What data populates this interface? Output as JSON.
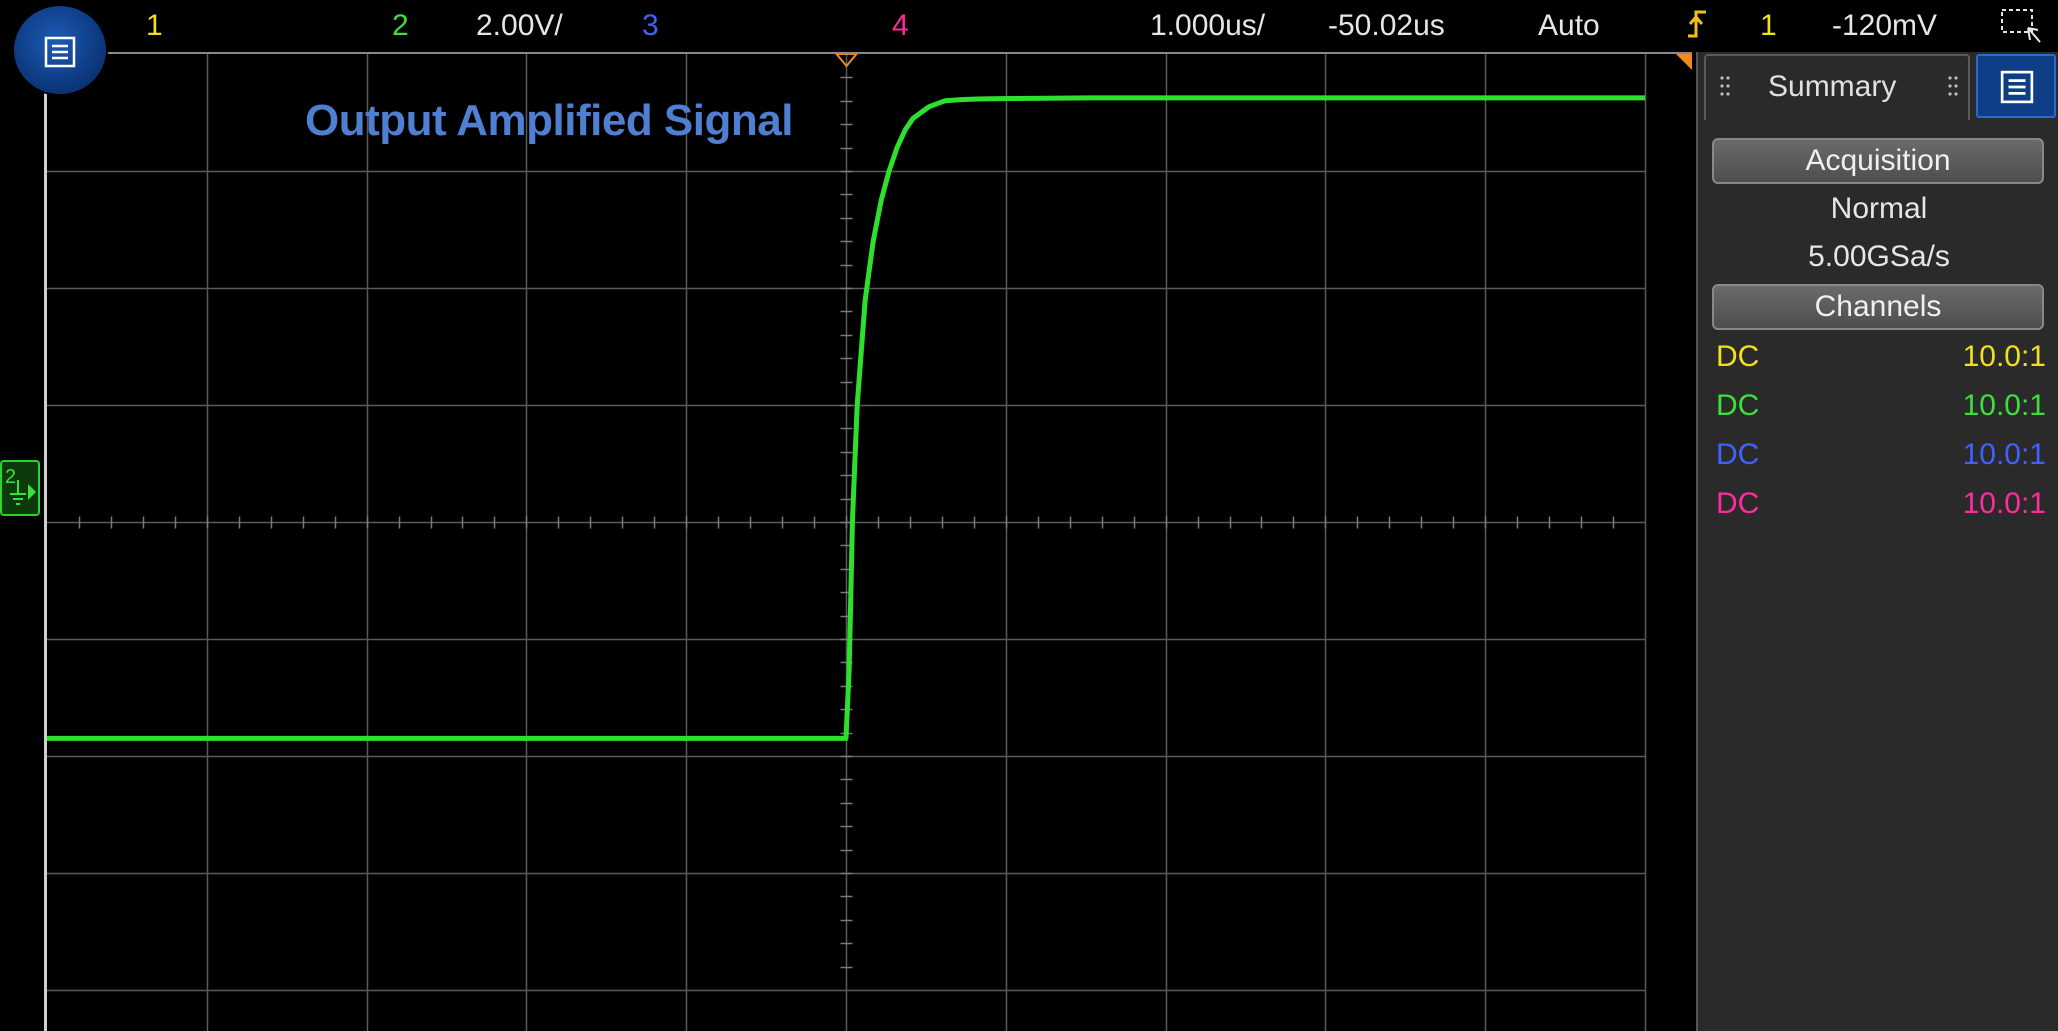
{
  "topbar": {
    "ch1": {
      "label": "1",
      "color": "#f0e020"
    },
    "ch2": {
      "label": "2",
      "scale": "2.00V/",
      "color": "#3be03b"
    },
    "ch3": {
      "label": "3",
      "color": "#4060ff"
    },
    "ch4": {
      "label": "4",
      "color": "#ff2ca0"
    },
    "timebase": "1.000us/",
    "delay": "-50.02us",
    "trigger_mode": "Auto",
    "trigger_source": "1",
    "trigger_level": "-120mV",
    "trigger_icon": "rising-edge-trigger-icon"
  },
  "plot": {
    "title": "Output Amplified Signal",
    "ground_marker_label": "2",
    "trace_color": "#2ee02e",
    "grid_color": "#5a5a5a"
  },
  "chart_data": {
    "type": "line",
    "title": "Output Amplified Signal",
    "xlabel": "",
    "ylabel": "",
    "x_unit": "us",
    "y_unit": "V",
    "xlim": [
      -55.02,
      -45.02
    ],
    "ylim": [
      -8.0,
      8.0
    ],
    "grid": true,
    "series": [
      {
        "x": [
          -55.02,
          -50.02,
          -50.0,
          -49.98,
          -49.95,
          -49.9,
          -49.85,
          -49.8,
          -49.75,
          -49.7,
          -49.65,
          -49.6,
          -49.55,
          -49.5,
          -49.45,
          -49.4,
          -49.3,
          -49.2,
          -49.0,
          -48.5,
          -45.02
        ],
        "y": [
          -3.7,
          -3.7,
          -2.5,
          0.0,
          2.0,
          3.8,
          4.8,
          5.5,
          6.0,
          6.4,
          6.7,
          6.9,
          7.0,
          7.1,
          7.15,
          7.2,
          7.22,
          7.23,
          7.24,
          7.25,
          7.25
        ]
      }
    ]
  },
  "panel": {
    "tab_label": "Summary",
    "acquisition_header": "Acquisition",
    "mode": "Normal",
    "sample_rate": "5.00GSa/s",
    "channels_header": "Channels",
    "channels": [
      {
        "coupling": "DC",
        "probe": "10.0:1",
        "color": "#f0e020"
      },
      {
        "coupling": "DC",
        "probe": "10.0:1",
        "color": "#3be03b"
      },
      {
        "coupling": "DC",
        "probe": "10.0:1",
        "color": "#4060ff"
      },
      {
        "coupling": "DC",
        "probe": "10.0:1",
        "color": "#ff2ca0"
      }
    ]
  }
}
